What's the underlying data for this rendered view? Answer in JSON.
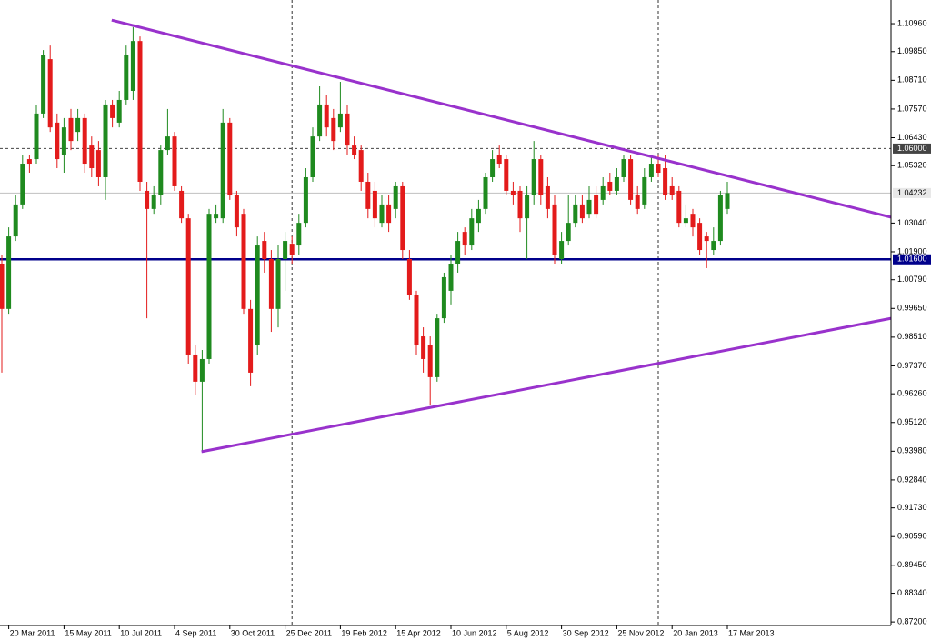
{
  "chart_data": {
    "type": "candlestick",
    "categories": [
      null,
      "20 Mar 2011",
      null,
      null,
      null,
      null,
      null,
      null,
      null,
      "15 May 2011",
      null,
      null,
      null,
      null,
      null,
      null,
      null,
      "10 Jul 2011",
      null,
      null,
      null,
      null,
      null,
      null,
      null,
      "4 Sep 2011",
      null,
      null,
      null,
      null,
      null,
      null,
      null,
      "30 Oct 2011",
      null,
      null,
      null,
      null,
      null,
      null,
      null,
      "25 Dec 2011",
      null,
      null,
      null,
      null,
      null,
      null,
      null,
      "19 Feb 2012",
      null,
      null,
      null,
      null,
      null,
      null,
      null,
      "15 Apr 2012",
      null,
      null,
      null,
      null,
      null,
      null,
      null,
      "10 Jun 2012",
      null,
      null,
      null,
      null,
      null,
      null,
      null,
      "5 Aug 2012",
      null,
      null,
      null,
      null,
      null,
      null,
      null,
      "30 Sep 2012",
      null,
      null,
      null,
      null,
      null,
      null,
      null,
      "25 Nov 2012",
      null,
      null,
      null,
      null,
      null,
      null,
      null,
      "20 Jan 2013",
      null,
      null,
      null,
      null,
      null,
      null,
      null,
      "17 Mar 2013"
    ],
    "open": [
      1.0143,
      0.9963,
      1.0251,
      1.0378,
      1.0558,
      1.0558,
      1.0739,
      1.0955,
      1.0703,
      1.0576,
      1.0721,
      1.0666,
      1.0721,
      1.0612,
      1.0594,
      1.0486,
      1.0775,
      1.0703,
      1.0793,
      1.0829,
      1.1027,
      1.0432,
      1.036,
      1.0414,
      1.0594,
      1.0648,
      1.0432,
      1.0323,
      0.9782,
      0.9674,
      0.9764,
      1.0323,
      1.0323,
      1.0703,
      1.0414,
      1.0341,
      0.9963,
      0.9818,
      1.0233,
      1.0161,
      0.9963,
      1.0161,
      1.0222,
      1.0215,
      1.0305,
      1.0486,
      1.0648,
      1.0775,
      1.0721,
      1.0684,
      1.0739,
      1.0612,
      1.0594,
      1.0468,
      1.0432,
      1.0305,
      1.0378,
      1.036,
      1.045,
      1.0161,
      1.0017,
      0.9854,
      0.9818,
      0.9692,
      0.9926,
      1.0035,
      1.0143,
      1.0269,
      1.0215,
      1.0305,
      1.036,
      1.0486,
      1.0576,
      1.0558,
      1.0432,
      1.0432,
      1.0323,
      1.0414,
      1.0558,
      1.045,
      1.0378,
      1.0161,
      1.0233,
      1.0305,
      1.0378,
      1.0341,
      1.0414,
      1.0396,
      1.0468,
      1.0432,
      1.0486,
      1.0558,
      1.0414,
      1.0378,
      1.0486,
      1.054,
      1.0522,
      1.045,
      1.0432,
      1.0305,
      1.0341,
      1.0305,
      1.0251,
      1.0197,
      1.0233,
      1.036
    ],
    "high": [
      1.0179,
      1.0287,
      1.0414,
      1.0576,
      1.0576,
      1.0775,
      1.0991,
      1.1009,
      1.0739,
      1.0721,
      1.0757,
      1.0757,
      1.0739,
      1.0648,
      1.063,
      1.0793,
      1.0793,
      1.0829,
      1.1009,
      1.1082,
      1.1045,
      1.0468,
      1.045,
      1.0612,
      1.0757,
      1.0666,
      1.045,
      1.0341,
      0.9818,
      0.98,
      1.036,
      1.0378,
      1.0757,
      1.0721,
      1.0432,
      1.036,
      0.9999,
      1.0251,
      1.0269,
      1.0197,
      1.0215,
      1.0269,
      1.0251,
      1.0341,
      1.0522,
      1.0684,
      1.0847,
      1.0811,
      1.0757,
      1.0865,
      1.0775,
      1.0648,
      1.0612,
      1.0504,
      1.0468,
      1.0414,
      1.0414,
      1.0468,
      1.0468,
      1.0197,
      1.0035,
      0.989,
      0.9854,
      0.9944,
      1.0107,
      1.0179,
      1.0269,
      1.0287,
      1.036,
      1.0396,
      1.0504,
      1.0594,
      1.0612,
      1.0576,
      1.0468,
      1.045,
      1.045,
      1.063,
      1.0576,
      1.0486,
      1.0414,
      1.0269,
      1.0414,
      1.0414,
      1.0414,
      1.045,
      1.045,
      1.0486,
      1.0504,
      1.0522,
      1.0576,
      1.0576,
      1.045,
      1.0522,
      1.0576,
      1.0576,
      1.0576,
      1.0486,
      1.045,
      1.0378,
      1.036,
      1.0323,
      1.0269,
      1.0287,
      1.0432,
      1.0468
    ],
    "low": [
      0.971,
      0.9944,
      1.0233,
      1.036,
      1.0504,
      1.054,
      1.0721,
      1.0666,
      1.0522,
      1.0504,
      1.0594,
      1.063,
      1.0504,
      1.0486,
      1.045,
      1.0396,
      1.0684,
      1.0684,
      1.0775,
      1.0793,
      1.0432,
      0.9926,
      1.0341,
      1.0378,
      1.0576,
      1.0432,
      1.0305,
      0.9746,
      0.962,
      0.9396,
      0.9746,
      1.0305,
      1.0305,
      1.0396,
      1.0251,
      0.9944,
      0.9656,
      0.9782,
      1.0107,
      0.9872,
      0.989,
      1.0035,
      1.0143,
      1.0179,
      1.0287,
      1.0468,
      1.063,
      1.0648,
      1.0594,
      1.0666,
      1.0576,
      1.0558,
      1.0432,
      1.0323,
      1.0287,
      1.0287,
      1.0269,
      1.0323,
      1.0161,
      0.9999,
      0.9782,
      0.971,
      0.9583,
      0.9674,
      0.9908,
      0.9981,
      1.0107,
      1.0179,
      1.0197,
      1.0269,
      1.0341,
      1.0468,
      1.0522,
      1.0414,
      1.0378,
      1.0269,
      1.0161,
      1.0378,
      1.0378,
      1.0323,
      1.0143,
      1.0143,
      1.0215,
      1.0287,
      1.0305,
      1.0323,
      1.0323,
      1.0378,
      1.0414,
      1.0414,
      1.0468,
      1.0378,
      1.0341,
      1.036,
      1.0468,
      1.0486,
      1.0396,
      1.0396,
      1.0287,
      1.0287,
      1.0251,
      1.0179,
      1.0125,
      1.0179,
      1.0215,
      1.0341
    ],
    "close": [
      0.9963,
      1.0251,
      1.0378,
      1.054,
      1.054,
      1.0739,
      1.0973,
      1.0684,
      1.0558,
      1.0684,
      1.063,
      1.0721,
      1.054,
      1.0522,
      1.0486,
      1.0775,
      1.0721,
      1.0793,
      1.0973,
      1.1027,
      1.0468,
      1.036,
      1.0414,
      1.0594,
      1.0648,
      1.045,
      1.0323,
      0.9782,
      0.9674,
      0.9764,
      1.0341,
      1.0341,
      1.0703,
      1.0414,
      1.0287,
      0.9963,
      0.971,
      1.0215,
      1.0161,
      0.9963,
      1.0161,
      1.0233,
      1.0179,
      1.0305,
      1.0486,
      1.0648,
      1.0775,
      1.0684,
      1.063,
      1.0739,
      1.0612,
      1.0576,
      1.0468,
      1.036,
      1.0323,
      1.0378,
      1.0305,
      1.045,
      1.0197,
      1.0017,
      0.9818,
      0.9764,
      0.9692,
      0.9926,
      1.0089,
      1.0143,
      1.0233,
      1.0215,
      1.0323,
      1.036,
      1.0486,
      1.0558,
      1.054,
      1.0432,
      1.0414,
      1.0323,
      1.0414,
      1.0558,
      1.0414,
      1.036,
      1.0179,
      1.0233,
      1.0305,
      1.0378,
      1.0323,
      1.0396,
      1.0341,
      1.045,
      1.0432,
      1.0486,
      1.0558,
      1.0396,
      1.036,
      1.0486,
      1.054,
      1.0504,
      1.0414,
      1.0414,
      1.0305,
      1.0323,
      1.0287,
      1.0197,
      1.0233,
      1.0233,
      1.0414,
      1.04232
    ],
    "up_color": "#1f8a1f",
    "down_color": "#e31b1b",
    "ylim": [
      0.8706,
      1.119
    ],
    "yticks": [
      {
        "value": 1.1096,
        "label": "1.10960"
      },
      {
        "value": 1.0985,
        "label": "1.09850"
      },
      {
        "value": 1.0871,
        "label": "1.08710"
      },
      {
        "value": 1.0757,
        "label": "1.07570"
      },
      {
        "value": 1.0643,
        "label": "1.06430"
      },
      {
        "value": 1.0532,
        "label": "1.05320"
      },
      {
        "value": 1.0304,
        "label": "1.03040"
      },
      {
        "value": 1.019,
        "label": "1.01900"
      },
      {
        "value": 1.0079,
        "label": "1.00790"
      },
      {
        "value": 0.9965,
        "label": "0.99650"
      },
      {
        "value": 0.9851,
        "label": "0.98510"
      },
      {
        "value": 0.9737,
        "label": "0.97370"
      },
      {
        "value": 0.9626,
        "label": "0.96260"
      },
      {
        "value": 0.9512,
        "label": "0.95120"
      },
      {
        "value": 0.9398,
        "label": "0.93980"
      },
      {
        "value": 0.9284,
        "label": "0.92840"
      },
      {
        "value": 0.9173,
        "label": "0.91730"
      },
      {
        "value": 0.9059,
        "label": "0.90590"
      },
      {
        "value": 0.8945,
        "label": "0.89450"
      },
      {
        "value": 0.8834,
        "label": "0.88340"
      },
      {
        "value": 0.872,
        "label": "0.87200"
      }
    ],
    "levels": [
      {
        "value": 1.06,
        "label": "1.06000",
        "color": "#444444",
        "style": "dotted"
      },
      {
        "value": 1.04232,
        "label": "1.04232",
        "color": "#c0c0c0",
        "style": "solid"
      },
      {
        "value": 1.016,
        "label": "1.01600",
        "color": "#00008b",
        "style": "thick"
      }
    ],
    "separators": [
      42,
      95
    ],
    "trendlines": [
      {
        "color": "#9932cc",
        "x": [
          15.9,
          132.9
        ],
        "y": [
          1.111,
          1.0298
        ]
      },
      {
        "color": "#9932cc",
        "x": [
          28.9,
          132.9
        ],
        "y": [
          0.9396,
          0.9948
        ]
      }
    ]
  }
}
